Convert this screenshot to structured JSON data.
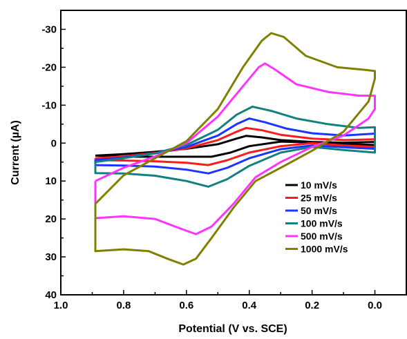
{
  "chart_data": {
    "type": "line",
    "xlabel": "Potential (V vs. SCE)",
    "ylabel_prefix": "Current (",
    "ylabel_mu": "µ",
    "ylabel_suffix": "A)",
    "xlim": [
      1.0,
      -0.1
    ],
    "ylim": [
      40,
      -35
    ],
    "x_reversed": true,
    "y_reversed": true,
    "x_ticks": [
      1.0,
      0.8,
      0.6,
      0.4,
      0.2,
      0.0
    ],
    "x_tick_labels": [
      "1.0",
      "0.8",
      "0.6",
      "0.4",
      "0.2",
      "0.0"
    ],
    "y_ticks": [
      -30,
      -20,
      -10,
      0,
      10,
      20,
      30,
      40
    ],
    "y_tick_labels": [
      "-30",
      "-20",
      "-10",
      "0",
      "10",
      "20",
      "30",
      "40"
    ],
    "grid": false,
    "legend_position": "bottom-right",
    "series": [
      {
        "name": "10 mV/s",
        "color": "#000000",
        "points": [
          [
            0.89,
            3.3
          ],
          [
            0.8,
            2.9
          ],
          [
            0.7,
            2.3
          ],
          [
            0.6,
            1.5
          ],
          [
            0.5,
            0.3
          ],
          [
            0.44,
            -1.2
          ],
          [
            0.41,
            -1.9
          ],
          [
            0.36,
            -1.5
          ],
          [
            0.3,
            -0.8
          ],
          [
            0.2,
            -0.3
          ],
          [
            0.1,
            -0.1
          ],
          [
            0.0,
            -0.3
          ],
          [
            0.0,
            0.5
          ],
          [
            0.1,
            0.2
          ],
          [
            0.2,
            -0.2
          ],
          [
            0.3,
            -0.4
          ],
          [
            0.4,
            0.8
          ],
          [
            0.46,
            2.5
          ],
          [
            0.52,
            3.6
          ],
          [
            0.6,
            3.6
          ],
          [
            0.7,
            3.6
          ],
          [
            0.8,
            3.6
          ],
          [
            0.89,
            3.3
          ]
        ]
      },
      {
        "name": "25 mV/s",
        "color": "#ff1a1a",
        "points": [
          [
            0.89,
            4.0
          ],
          [
            0.8,
            3.5
          ],
          [
            0.7,
            2.6
          ],
          [
            0.6,
            1.4
          ],
          [
            0.5,
            -0.8
          ],
          [
            0.44,
            -3.0
          ],
          [
            0.41,
            -4.0
          ],
          [
            0.36,
            -3.4
          ],
          [
            0.3,
            -2.2
          ],
          [
            0.2,
            -1.2
          ],
          [
            0.1,
            -0.8
          ],
          [
            0.0,
            -1.0
          ],
          [
            0.0,
            1.0
          ],
          [
            0.1,
            0.6
          ],
          [
            0.2,
            0.0
          ],
          [
            0.3,
            0.8
          ],
          [
            0.4,
            2.5
          ],
          [
            0.47,
            4.5
          ],
          [
            0.53,
            5.8
          ],
          [
            0.6,
            5.2
          ],
          [
            0.7,
            4.8
          ],
          [
            0.8,
            4.6
          ],
          [
            0.89,
            4.5
          ],
          [
            0.89,
            4.0
          ]
        ]
      },
      {
        "name": "50 mV/s",
        "color": "#1a35ff",
        "points": [
          [
            0.89,
            4.5
          ],
          [
            0.8,
            3.8
          ],
          [
            0.7,
            2.7
          ],
          [
            0.6,
            1.0
          ],
          [
            0.5,
            -2.0
          ],
          [
            0.44,
            -5.0
          ],
          [
            0.4,
            -6.5
          ],
          [
            0.35,
            -5.5
          ],
          [
            0.28,
            -3.8
          ],
          [
            0.2,
            -2.6
          ],
          [
            0.1,
            -2.0
          ],
          [
            0.0,
            -2.5
          ],
          [
            0.0,
            1.5
          ],
          [
            0.1,
            1.1
          ],
          [
            0.2,
            0.6
          ],
          [
            0.3,
            1.6
          ],
          [
            0.4,
            4.0
          ],
          [
            0.47,
            6.5
          ],
          [
            0.53,
            8.0
          ],
          [
            0.6,
            7.0
          ],
          [
            0.7,
            6.2
          ],
          [
            0.8,
            5.9
          ],
          [
            0.89,
            5.8
          ],
          [
            0.89,
            4.5
          ]
        ]
      },
      {
        "name": "100 mV/s",
        "color": "#138080",
        "points": [
          [
            0.89,
            5.0
          ],
          [
            0.8,
            4.0
          ],
          [
            0.7,
            2.7
          ],
          [
            0.6,
            0.5
          ],
          [
            0.5,
            -3.5
          ],
          [
            0.44,
            -7.5
          ],
          [
            0.39,
            -9.6
          ],
          [
            0.33,
            -8.5
          ],
          [
            0.25,
            -6.5
          ],
          [
            0.15,
            -5.0
          ],
          [
            0.05,
            -4.0
          ],
          [
            0.0,
            -4.2
          ],
          [
            0.0,
            2.5
          ],
          [
            0.1,
            1.8
          ],
          [
            0.2,
            1.0
          ],
          [
            0.3,
            2.5
          ],
          [
            0.4,
            6.0
          ],
          [
            0.47,
            9.5
          ],
          [
            0.53,
            11.5
          ],
          [
            0.6,
            10.0
          ],
          [
            0.7,
            8.6
          ],
          [
            0.8,
            8.0
          ],
          [
            0.89,
            7.9
          ],
          [
            0.89,
            5.0
          ]
        ]
      },
      {
        "name": "500 mV/s",
        "color": "#ff33ff",
        "points": [
          [
            0.89,
            10.0
          ],
          [
            0.8,
            6.5
          ],
          [
            0.7,
            3.5
          ],
          [
            0.6,
            0.0
          ],
          [
            0.5,
            -7.0
          ],
          [
            0.42,
            -15.0
          ],
          [
            0.37,
            -20.0
          ],
          [
            0.35,
            -21.0
          ],
          [
            0.32,
            -19.5
          ],
          [
            0.25,
            -15.5
          ],
          [
            0.15,
            -13.5
          ],
          [
            0.05,
            -12.5
          ],
          [
            0.0,
            -12.5
          ],
          [
            0.0,
            -9.0
          ],
          [
            0.02,
            -6.5
          ],
          [
            0.1,
            -2.0
          ],
          [
            0.2,
            1.0
          ],
          [
            0.3,
            5.0
          ],
          [
            0.38,
            9.0
          ],
          [
            0.45,
            16.0
          ],
          [
            0.52,
            22.0
          ],
          [
            0.57,
            24.0
          ],
          [
            0.62,
            22.5
          ],
          [
            0.7,
            20.0
          ],
          [
            0.8,
            19.3
          ],
          [
            0.89,
            19.8
          ],
          [
            0.89,
            10.0
          ]
        ]
      },
      {
        "name": "1000 mV/s",
        "color": "#808000",
        "points": [
          [
            0.89,
            16.0
          ],
          [
            0.8,
            8.5
          ],
          [
            0.7,
            4.0
          ],
          [
            0.6,
            -0.5
          ],
          [
            0.5,
            -9.0
          ],
          [
            0.42,
            -20.0
          ],
          [
            0.36,
            -27.0
          ],
          [
            0.33,
            -29.0
          ],
          [
            0.29,
            -28.0
          ],
          [
            0.22,
            -23.0
          ],
          [
            0.12,
            -20.0
          ],
          [
            0.03,
            -19.3
          ],
          [
            0.0,
            -19.0
          ],
          [
            0.0,
            -17.0
          ],
          [
            0.02,
            -11.0
          ],
          [
            0.1,
            -3.0
          ],
          [
            0.2,
            2.0
          ],
          [
            0.3,
            6.5
          ],
          [
            0.38,
            10.0
          ],
          [
            0.45,
            17.0
          ],
          [
            0.52,
            25.0
          ],
          [
            0.57,
            30.5
          ],
          [
            0.61,
            32.0
          ],
          [
            0.66,
            30.5
          ],
          [
            0.72,
            28.5
          ],
          [
            0.8,
            28.0
          ],
          [
            0.89,
            28.5
          ],
          [
            0.89,
            16.0
          ]
        ]
      }
    ]
  }
}
